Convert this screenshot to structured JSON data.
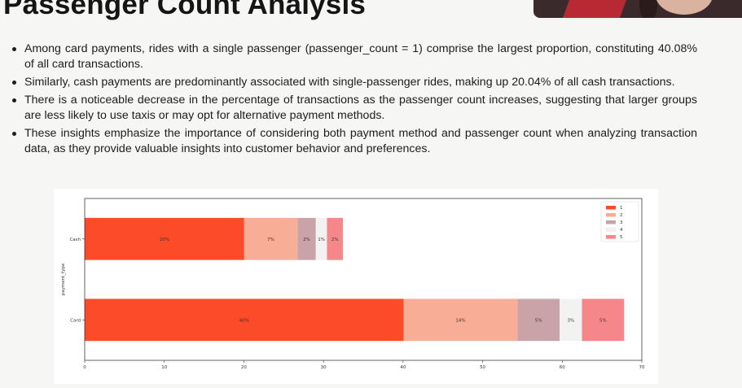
{
  "slide": {
    "title": "Passenger Count Analysis",
    "bullets": [
      "Among card payments, rides with a single passenger (passenger_count = 1) comprise the largest proportion, constituting 40.08% of all card transactions.",
      "Similarly, cash payments are predominantly associated with single-passenger rides, making up 20.04% of all cash transactions.",
      "There is a noticeable decrease in the percentage of transactions as the passenger count increases, suggesting that larger groups are less likely to use taxis or may opt for alternative payment methods.",
      "These insights emphasize the importance of considering both payment method and passenger count when analyzing transaction data, as they provide valuable insights into customer behavior and preferences."
    ]
  },
  "chart_data": {
    "type": "bar",
    "orientation": "horizontal",
    "stacked": true,
    "categories": [
      "Card",
      "Cash"
    ],
    "series": [
      {
        "name": "1",
        "values": [
          40.08,
          20.04
        ],
        "labels": [
          "40%",
          "20%"
        ],
        "color": "#fb4b28"
      },
      {
        "name": "2",
        "values": [
          14.3,
          6.7
        ],
        "labels": [
          "14%",
          "7%"
        ],
        "color": "#f8ad96"
      },
      {
        "name": "3",
        "values": [
          5.3,
          2.3
        ],
        "labels": [
          "5%",
          "2%"
        ],
        "color": "#c9a3a7"
      },
      {
        "name": "4",
        "values": [
          2.8,
          1.4
        ],
        "labels": [
          "3%",
          "1%"
        ],
        "color": "#f2f2f2"
      },
      {
        "name": "5",
        "values": [
          5.3,
          2.0
        ],
        "labels": [
          "5%",
          "2%"
        ],
        "color": "#f5878a"
      }
    ],
    "ylabel": "payment_type",
    "xlim": [
      0,
      70
    ],
    "xticks": [
      0,
      10,
      20,
      30,
      40,
      50,
      60,
      70
    ],
    "grid": false,
    "legend": "top-right"
  }
}
